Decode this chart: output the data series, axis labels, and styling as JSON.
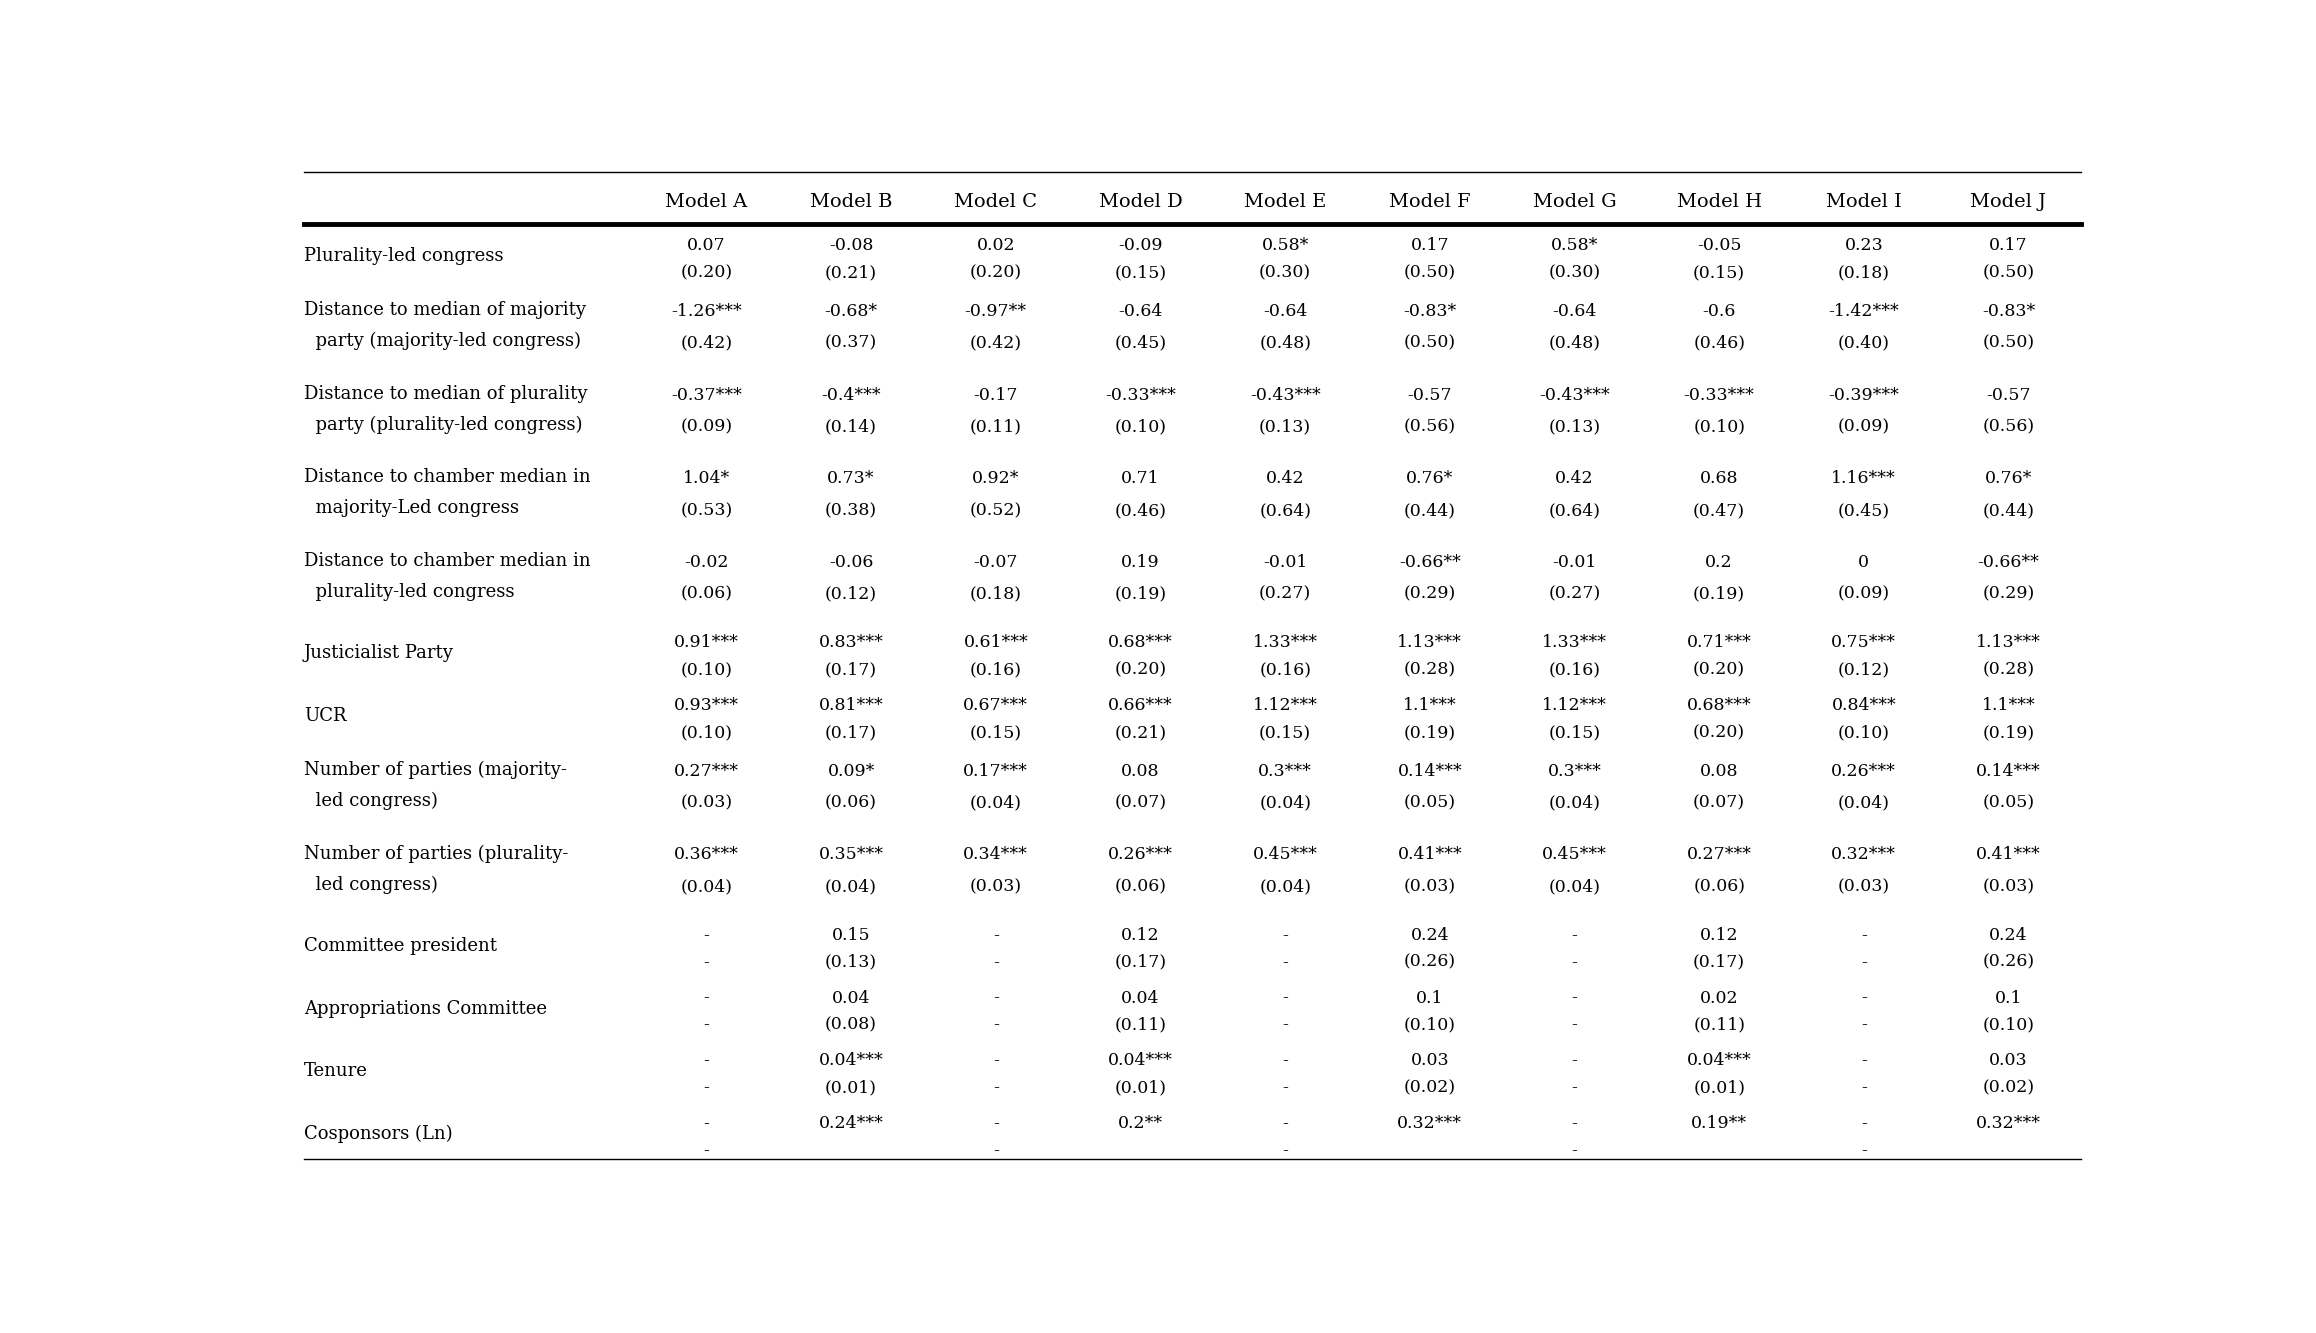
{
  "col_headers": [
    "",
    "Model A",
    "Model B",
    "Model C",
    "Model D",
    "Model E",
    "Model F",
    "Model G",
    "Model H",
    "Model I",
    "Model J"
  ],
  "rows": [
    {
      "label_line1": "Plurality-led congress",
      "label_line2": "",
      "values": [
        "0.07",
        "-0.08",
        "0.02",
        "-0.09",
        "0.58*",
        "0.17",
        "0.58*",
        "-0.05",
        "0.23",
        "0.17"
      ],
      "se": [
        "(0.20)",
        "(0.21)",
        "(0.20)",
        "(0.15)",
        "(0.30)",
        "(0.50)",
        "(0.30)",
        "(0.15)",
        "(0.18)",
        "(0.50)"
      ]
    },
    {
      "label_line1": "Distance to median of majority",
      "label_line2": "  party (majority-led congress)",
      "values": [
        "-1.26***",
        "-0.68*",
        "-0.97**",
        "-0.64",
        "-0.64",
        "-0.83*",
        "-0.64",
        "-0.6",
        "-1.42***",
        "-0.83*"
      ],
      "se": [
        "(0.42)",
        "(0.37)",
        "(0.42)",
        "(0.45)",
        "(0.48)",
        "(0.50)",
        "(0.48)",
        "(0.46)",
        "(0.40)",
        "(0.50)"
      ]
    },
    {
      "label_line1": "Distance to median of plurality",
      "label_line2": "  party (plurality-led congress)",
      "values": [
        "-0.37***",
        "-0.4***",
        "-0.17",
        "-0.33***",
        "-0.43***",
        "-0.57",
        "-0.43***",
        "-0.33***",
        "-0.39***",
        "-0.57"
      ],
      "se": [
        "(0.09)",
        "(0.14)",
        "(0.11)",
        "(0.10)",
        "(0.13)",
        "(0.56)",
        "(0.13)",
        "(0.10)",
        "(0.09)",
        "(0.56)"
      ]
    },
    {
      "label_line1": "Distance to chamber median in",
      "label_line2": "  majority-Led congress",
      "values": [
        "1.04*",
        "0.73*",
        "0.92*",
        "0.71",
        "0.42",
        "0.76*",
        "0.42",
        "0.68",
        "1.16***",
        "0.76*"
      ],
      "se": [
        "(0.53)",
        "(0.38)",
        "(0.52)",
        "(0.46)",
        "(0.64)",
        "(0.44)",
        "(0.64)",
        "(0.47)",
        "(0.45)",
        "(0.44)"
      ]
    },
    {
      "label_line1": "Distance to chamber median in",
      "label_line2": "  plurality-led congress",
      "values": [
        "-0.02",
        "-0.06",
        "-0.07",
        "0.19",
        "-0.01",
        "-0.66**",
        "-0.01",
        "0.2",
        "0",
        "-0.66**"
      ],
      "se": [
        "(0.06)",
        "(0.12)",
        "(0.18)",
        "(0.19)",
        "(0.27)",
        "(0.29)",
        "(0.27)",
        "(0.19)",
        "(0.09)",
        "(0.29)"
      ]
    },
    {
      "label_line1": "Justicialist Party",
      "label_line2": "",
      "values": [
        "0.91***",
        "0.83***",
        "0.61***",
        "0.68***",
        "1.33***",
        "1.13***",
        "1.33***",
        "0.71***",
        "0.75***",
        "1.13***"
      ],
      "se": [
        "(0.10)",
        "(0.17)",
        "(0.16)",
        "(0.20)",
        "(0.16)",
        "(0.28)",
        "(0.16)",
        "(0.20)",
        "(0.12)",
        "(0.28)"
      ]
    },
    {
      "label_line1": "UCR",
      "label_line2": "",
      "values": [
        "0.93***",
        "0.81***",
        "0.67***",
        "0.66***",
        "1.12***",
        "1.1***",
        "1.12***",
        "0.68***",
        "0.84***",
        "1.1***"
      ],
      "se": [
        "(0.10)",
        "(0.17)",
        "(0.15)",
        "(0.21)",
        "(0.15)",
        "(0.19)",
        "(0.15)",
        "(0.20)",
        "(0.10)",
        "(0.19)"
      ]
    },
    {
      "label_line1": "Number of parties (majority-",
      "label_line2": "  led congress)",
      "values": [
        "0.27***",
        "0.09*",
        "0.17***",
        "0.08",
        "0.3***",
        "0.14***",
        "0.3***",
        "0.08",
        "0.26***",
        "0.14***"
      ],
      "se": [
        "(0.03)",
        "(0.06)",
        "(0.04)",
        "(0.07)",
        "(0.04)",
        "(0.05)",
        "(0.04)",
        "(0.07)",
        "(0.04)",
        "(0.05)"
      ]
    },
    {
      "label_line1": "Number of parties (plurality-",
      "label_line2": "  led congress)",
      "values": [
        "0.36***",
        "0.35***",
        "0.34***",
        "0.26***",
        "0.45***",
        "0.41***",
        "0.45***",
        "0.27***",
        "0.32***",
        "0.41***"
      ],
      "se": [
        "(0.04)",
        "(0.04)",
        "(0.03)",
        "(0.06)",
        "(0.04)",
        "(0.03)",
        "(0.04)",
        "(0.06)",
        "(0.03)",
        "(0.03)"
      ]
    },
    {
      "label_line1": "Committee president",
      "label_line2": "",
      "values": [
        "-",
        "0.15",
        "-",
        "0.12",
        "-",
        "0.24",
        "-",
        "0.12",
        "-",
        "0.24"
      ],
      "se": [
        "-",
        "(0.13)",
        "-",
        "(0.17)",
        "-",
        "(0.26)",
        "-",
        "(0.17)",
        "-",
        "(0.26)"
      ]
    },
    {
      "label_line1": "Appropriations Committee",
      "label_line2": "",
      "values": [
        "-",
        "0.04",
        "-",
        "0.04",
        "-",
        "0.1",
        "-",
        "0.02",
        "-",
        "0.1"
      ],
      "se": [
        "-",
        "(0.08)",
        "-",
        "(0.11)",
        "-",
        "(0.10)",
        "-",
        "(0.11)",
        "-",
        "(0.10)"
      ]
    },
    {
      "label_line1": "Tenure",
      "label_line2": "",
      "values": [
        "-",
        "0.04***",
        "-",
        "0.04***",
        "-",
        "0.03",
        "-",
        "0.04***",
        "-",
        "0.03"
      ],
      "se": [
        "-",
        "(0.01)",
        "-",
        "(0.01)",
        "-",
        "(0.02)",
        "-",
        "(0.01)",
        "-",
        "(0.02)"
      ]
    },
    {
      "label_line1": "Cosponsors (Ln)",
      "label_line2": "",
      "values": [
        "-",
        "0.24***",
        "-",
        "0.2**",
        "-",
        "0.32***",
        "-",
        "0.19**",
        "-",
        "0.32***"
      ],
      "se": [
        "-",
        "",
        "-",
        "",
        "-",
        "",
        "-",
        "",
        "-",
        ""
      ]
    }
  ],
  "font_family": "serif",
  "header_fontsize": 14,
  "cell_fontsize": 12.5,
  "label_fontsize": 13,
  "bg_color": "#ffffff",
  "text_color": "#000000",
  "line_color": "#000000"
}
